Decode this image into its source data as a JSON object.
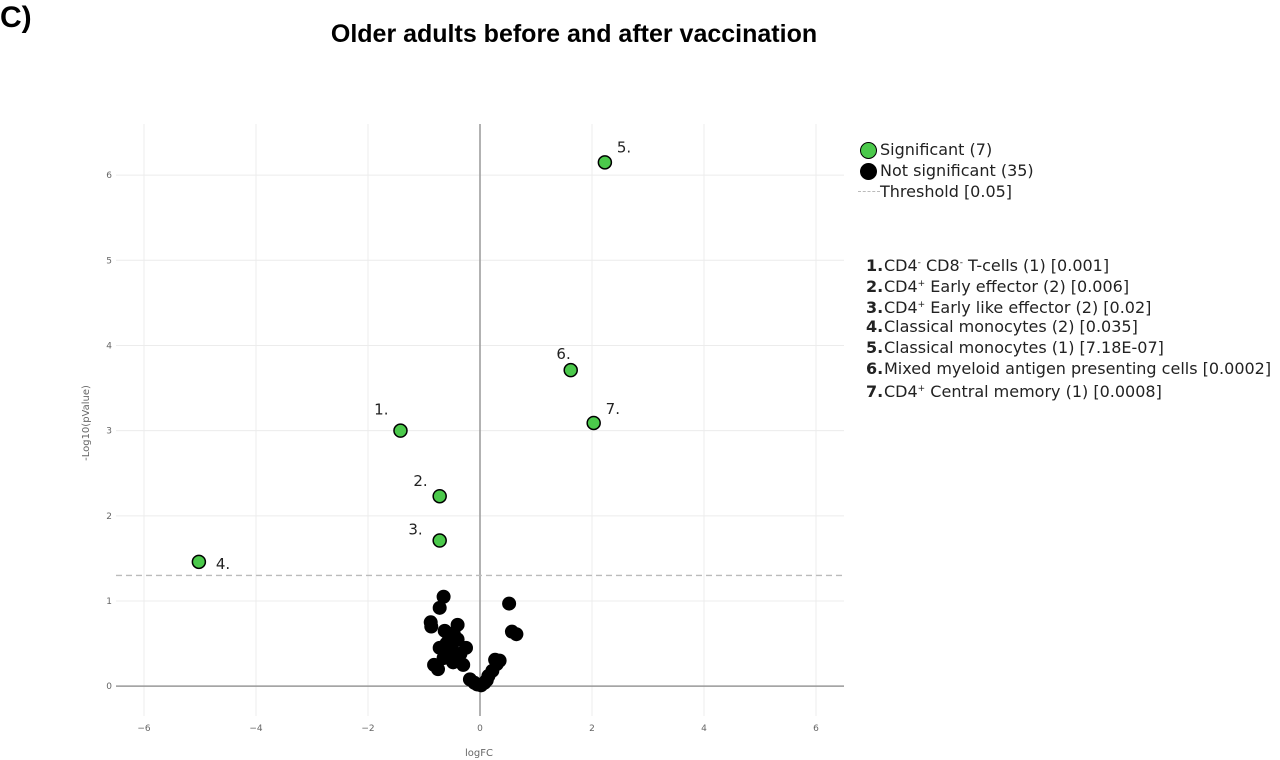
{
  "panel_label": "C)",
  "chart_data": {
    "type": "scatter",
    "title": "Older adults before and after vaccination",
    "xlabel": "logFC",
    "ylabel": "-Log10(pValue)",
    "xlim": [
      -6.5,
      6.5
    ],
    "ylim": [
      -0.35,
      6.6
    ],
    "x_ticks": [
      -6,
      -4,
      -2,
      0,
      2,
      4,
      6
    ],
    "y_ticks": [
      0,
      1,
      2,
      3,
      4,
      5,
      6
    ],
    "x_tick_labels": [
      "−6",
      "−4",
      "−2",
      "0",
      "2",
      "4",
      "6"
    ],
    "y_tick_labels": [
      "0",
      "1",
      "2",
      "3",
      "4",
      "5",
      "6"
    ],
    "grid": true,
    "threshold": {
      "y": 1.3,
      "label": "Threshold [0.05]"
    },
    "legend": {
      "placement": "top-right",
      "significant_label": "Significant (7)",
      "not_significant_label": "Not significant (35)",
      "threshold_label": "Threshold [0.05]"
    },
    "colors": {
      "significant": "#4bc94b",
      "not_significant": "#000000",
      "threshold": "#bbbbbb",
      "grid": "#ececec",
      "zero_line": "#999999"
    },
    "significant_points": [
      {
        "label": "1.",
        "x": -1.42,
        "y": 3.0
      },
      {
        "label": "2.",
        "x": -0.72,
        "y": 2.23
      },
      {
        "label": "3.",
        "x": -0.72,
        "y": 1.71
      },
      {
        "label": "4.",
        "x": -5.02,
        "y": 1.46
      },
      {
        "label": "5.",
        "x": 2.23,
        "y": 6.15
      },
      {
        "label": "6.",
        "x": 1.62,
        "y": 3.71
      },
      {
        "label": "7.",
        "x": 2.03,
        "y": 3.09
      }
    ],
    "not_significant_points": [
      {
        "x": -0.65,
        "y": 1.05
      },
      {
        "x": -0.72,
        "y": 0.92
      },
      {
        "x": -0.88,
        "y": 0.75
      },
      {
        "x": -0.87,
        "y": 0.7
      },
      {
        "x": -0.63,
        "y": 0.65
      },
      {
        "x": -0.4,
        "y": 0.72
      },
      {
        "x": -0.47,
        "y": 0.62
      },
      {
        "x": -0.55,
        "y": 0.58
      },
      {
        "x": -0.72,
        "y": 0.45
      },
      {
        "x": -0.6,
        "y": 0.5
      },
      {
        "x": -0.25,
        "y": 0.45
      },
      {
        "x": -0.45,
        "y": 0.35
      },
      {
        "x": -0.35,
        "y": 0.38
      },
      {
        "x": -0.65,
        "y": 0.33
      },
      {
        "x": -0.82,
        "y": 0.25
      },
      {
        "x": -0.75,
        "y": 0.2
      },
      {
        "x": -0.48,
        "y": 0.28
      },
      {
        "x": -0.3,
        "y": 0.25
      },
      {
        "x": -0.55,
        "y": 0.4
      },
      {
        "x": -0.18,
        "y": 0.08
      },
      {
        "x": -0.1,
        "y": 0.04
      },
      {
        "x": -0.05,
        "y": 0.02
      },
      {
        "x": 0.02,
        "y": 0.01
      },
      {
        "x": 0.08,
        "y": 0.04
      },
      {
        "x": 0.12,
        "y": 0.07
      },
      {
        "x": 0.15,
        "y": 0.12
      },
      {
        "x": 0.22,
        "y": 0.18
      },
      {
        "x": 0.3,
        "y": 0.26
      },
      {
        "x": 0.35,
        "y": 0.3
      },
      {
        "x": 0.27,
        "y": 0.31
      },
      {
        "x": 0.52,
        "y": 0.97
      },
      {
        "x": 0.57,
        "y": 0.64
      },
      {
        "x": 0.65,
        "y": 0.61
      },
      {
        "x": -0.4,
        "y": 0.55
      },
      {
        "x": -0.5,
        "y": 0.48
      }
    ],
    "annotations": [
      {
        "num": "1.",
        "parts": [
          {
            "t": "CD4"
          },
          {
            "t": "-",
            "sup": true
          },
          {
            "t": " CD8"
          },
          {
            "t": "-",
            "sup": true
          },
          {
            "t": " T-cells (1) [0.001]"
          }
        ]
      },
      {
        "num": "2.",
        "parts": [
          {
            "t": "CD4"
          },
          {
            "t": "+",
            "sup": true
          },
          {
            "t": " Early effector (2) [0.006]"
          }
        ]
      },
      {
        "num": "3.",
        "parts": [
          {
            "t": "CD4"
          },
          {
            "t": "+",
            "sup": true
          },
          {
            "t": " Early like effector (2) [0.02]"
          }
        ]
      },
      {
        "num": "4.",
        "parts": [
          {
            "t": "Classical monocytes (2) [0.035]"
          }
        ]
      },
      {
        "num": "5.",
        "parts": [
          {
            "t": "Classical monocytes (1) [7.18E-07]"
          }
        ]
      },
      {
        "num": "6.",
        "parts": [
          {
            "t": "Mixed myeloid antigen presenting cells [0.0002]"
          }
        ]
      },
      {
        "num": "7.",
        "parts": [
          {
            "t": "CD4"
          },
          {
            "t": "+",
            "sup": true
          },
          {
            "t": " Central memory (1) [0.0008]"
          }
        ]
      }
    ]
  }
}
